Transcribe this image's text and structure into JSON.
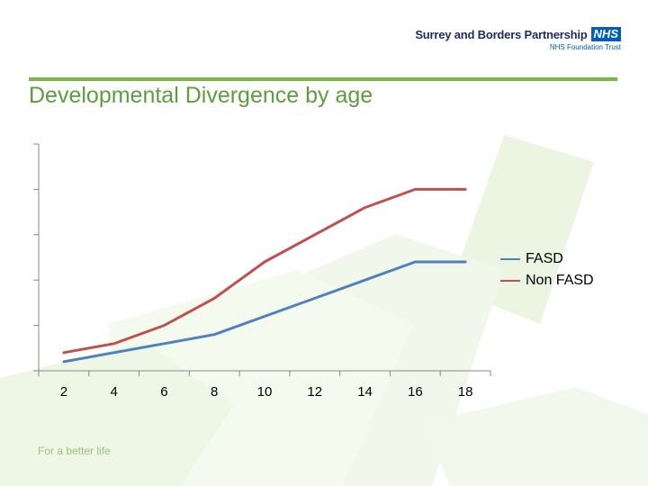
{
  "branding": {
    "org_name": "Surrey and Borders Partnership",
    "nhs_badge": "NHS",
    "sub_name": "NHS Foundation Trust",
    "tagline": "For a better life",
    "accent_color": "#79b943",
    "nhs_color": "#005eb8"
  },
  "chart_data": {
    "type": "line",
    "title": "Developmental Divergence by age",
    "xlabel": "",
    "ylabel": "",
    "x": [
      2,
      4,
      6,
      8,
      10,
      12,
      14,
      16,
      18
    ],
    "xlim": [
      1,
      19
    ],
    "ylim": [
      0,
      25
    ],
    "y_ticks": [
      0,
      5,
      10,
      15,
      20,
      25
    ],
    "y_tick_labels_shown": false,
    "grid": false,
    "legend_position": "right",
    "series": [
      {
        "name": "FASD",
        "color": "#4f81bd",
        "values": [
          1,
          2,
          3,
          4,
          6,
          8,
          10,
          12,
          12
        ]
      },
      {
        "name": "Non FASD",
        "color": "#c0504d",
        "values": [
          2,
          3,
          5,
          8,
          12,
          15,
          18,
          20,
          20
        ]
      }
    ]
  }
}
